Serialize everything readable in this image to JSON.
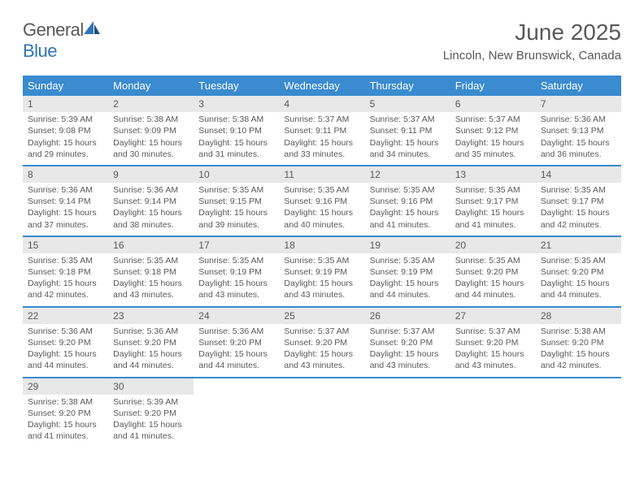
{
  "logo": {
    "text1": "General",
    "text2": "Blue"
  },
  "title": "June 2025",
  "location": "Lincoln, New Brunswick, Canada",
  "colors": {
    "header_bg": "#3a8bcf",
    "daynum_bg": "#e8e8e8",
    "text": "#595959",
    "rule": "#3a8bcf",
    "logo_blue": "#2e75b6",
    "page_bg": "#ffffff"
  },
  "fonts": {
    "title_size": 28,
    "location_size": 15,
    "dow_size": 13,
    "daynum_size": 12,
    "body_size": 10.5
  },
  "dow": [
    "Sunday",
    "Monday",
    "Tuesday",
    "Wednesday",
    "Thursday",
    "Friday",
    "Saturday"
  ],
  "weeks": [
    [
      {
        "num": "1",
        "sunrise": "Sunrise: 5:39 AM",
        "sunset": "Sunset: 9:08 PM",
        "daylight": "Daylight: 15 hours and 29 minutes."
      },
      {
        "num": "2",
        "sunrise": "Sunrise: 5:38 AM",
        "sunset": "Sunset: 9:09 PM",
        "daylight": "Daylight: 15 hours and 30 minutes."
      },
      {
        "num": "3",
        "sunrise": "Sunrise: 5:38 AM",
        "sunset": "Sunset: 9:10 PM",
        "daylight": "Daylight: 15 hours and 31 minutes."
      },
      {
        "num": "4",
        "sunrise": "Sunrise: 5:37 AM",
        "sunset": "Sunset: 9:11 PM",
        "daylight": "Daylight: 15 hours and 33 minutes."
      },
      {
        "num": "5",
        "sunrise": "Sunrise: 5:37 AM",
        "sunset": "Sunset: 9:11 PM",
        "daylight": "Daylight: 15 hours and 34 minutes."
      },
      {
        "num": "6",
        "sunrise": "Sunrise: 5:37 AM",
        "sunset": "Sunset: 9:12 PM",
        "daylight": "Daylight: 15 hours and 35 minutes."
      },
      {
        "num": "7",
        "sunrise": "Sunrise: 5:36 AM",
        "sunset": "Sunset: 9:13 PM",
        "daylight": "Daylight: 15 hours and 36 minutes."
      }
    ],
    [
      {
        "num": "8",
        "sunrise": "Sunrise: 5:36 AM",
        "sunset": "Sunset: 9:14 PM",
        "daylight": "Daylight: 15 hours and 37 minutes."
      },
      {
        "num": "9",
        "sunrise": "Sunrise: 5:36 AM",
        "sunset": "Sunset: 9:14 PM",
        "daylight": "Daylight: 15 hours and 38 minutes."
      },
      {
        "num": "10",
        "sunrise": "Sunrise: 5:35 AM",
        "sunset": "Sunset: 9:15 PM",
        "daylight": "Daylight: 15 hours and 39 minutes."
      },
      {
        "num": "11",
        "sunrise": "Sunrise: 5:35 AM",
        "sunset": "Sunset: 9:16 PM",
        "daylight": "Daylight: 15 hours and 40 minutes."
      },
      {
        "num": "12",
        "sunrise": "Sunrise: 5:35 AM",
        "sunset": "Sunset: 9:16 PM",
        "daylight": "Daylight: 15 hours and 41 minutes."
      },
      {
        "num": "13",
        "sunrise": "Sunrise: 5:35 AM",
        "sunset": "Sunset: 9:17 PM",
        "daylight": "Daylight: 15 hours and 41 minutes."
      },
      {
        "num": "14",
        "sunrise": "Sunrise: 5:35 AM",
        "sunset": "Sunset: 9:17 PM",
        "daylight": "Daylight: 15 hours and 42 minutes."
      }
    ],
    [
      {
        "num": "15",
        "sunrise": "Sunrise: 5:35 AM",
        "sunset": "Sunset: 9:18 PM",
        "daylight": "Daylight: 15 hours and 42 minutes."
      },
      {
        "num": "16",
        "sunrise": "Sunrise: 5:35 AM",
        "sunset": "Sunset: 9:18 PM",
        "daylight": "Daylight: 15 hours and 43 minutes."
      },
      {
        "num": "17",
        "sunrise": "Sunrise: 5:35 AM",
        "sunset": "Sunset: 9:19 PM",
        "daylight": "Daylight: 15 hours and 43 minutes."
      },
      {
        "num": "18",
        "sunrise": "Sunrise: 5:35 AM",
        "sunset": "Sunset: 9:19 PM",
        "daylight": "Daylight: 15 hours and 43 minutes."
      },
      {
        "num": "19",
        "sunrise": "Sunrise: 5:35 AM",
        "sunset": "Sunset: 9:19 PM",
        "daylight": "Daylight: 15 hours and 44 minutes."
      },
      {
        "num": "20",
        "sunrise": "Sunrise: 5:35 AM",
        "sunset": "Sunset: 9:20 PM",
        "daylight": "Daylight: 15 hours and 44 minutes."
      },
      {
        "num": "21",
        "sunrise": "Sunrise: 5:35 AM",
        "sunset": "Sunset: 9:20 PM",
        "daylight": "Daylight: 15 hours and 44 minutes."
      }
    ],
    [
      {
        "num": "22",
        "sunrise": "Sunrise: 5:36 AM",
        "sunset": "Sunset: 9:20 PM",
        "daylight": "Daylight: 15 hours and 44 minutes."
      },
      {
        "num": "23",
        "sunrise": "Sunrise: 5:36 AM",
        "sunset": "Sunset: 9:20 PM",
        "daylight": "Daylight: 15 hours and 44 minutes."
      },
      {
        "num": "24",
        "sunrise": "Sunrise: 5:36 AM",
        "sunset": "Sunset: 9:20 PM",
        "daylight": "Daylight: 15 hours and 44 minutes."
      },
      {
        "num": "25",
        "sunrise": "Sunrise: 5:37 AM",
        "sunset": "Sunset: 9:20 PM",
        "daylight": "Daylight: 15 hours and 43 minutes."
      },
      {
        "num": "26",
        "sunrise": "Sunrise: 5:37 AM",
        "sunset": "Sunset: 9:20 PM",
        "daylight": "Daylight: 15 hours and 43 minutes."
      },
      {
        "num": "27",
        "sunrise": "Sunrise: 5:37 AM",
        "sunset": "Sunset: 9:20 PM",
        "daylight": "Daylight: 15 hours and 43 minutes."
      },
      {
        "num": "28",
        "sunrise": "Sunrise: 5:38 AM",
        "sunset": "Sunset: 9:20 PM",
        "daylight": "Daylight: 15 hours and 42 minutes."
      }
    ],
    [
      {
        "num": "29",
        "sunrise": "Sunrise: 5:38 AM",
        "sunset": "Sunset: 9:20 PM",
        "daylight": "Daylight: 15 hours and 41 minutes."
      },
      {
        "num": "30",
        "sunrise": "Sunrise: 5:39 AM",
        "sunset": "Sunset: 9:20 PM",
        "daylight": "Daylight: 15 hours and 41 minutes."
      },
      null,
      null,
      null,
      null,
      null
    ]
  ]
}
